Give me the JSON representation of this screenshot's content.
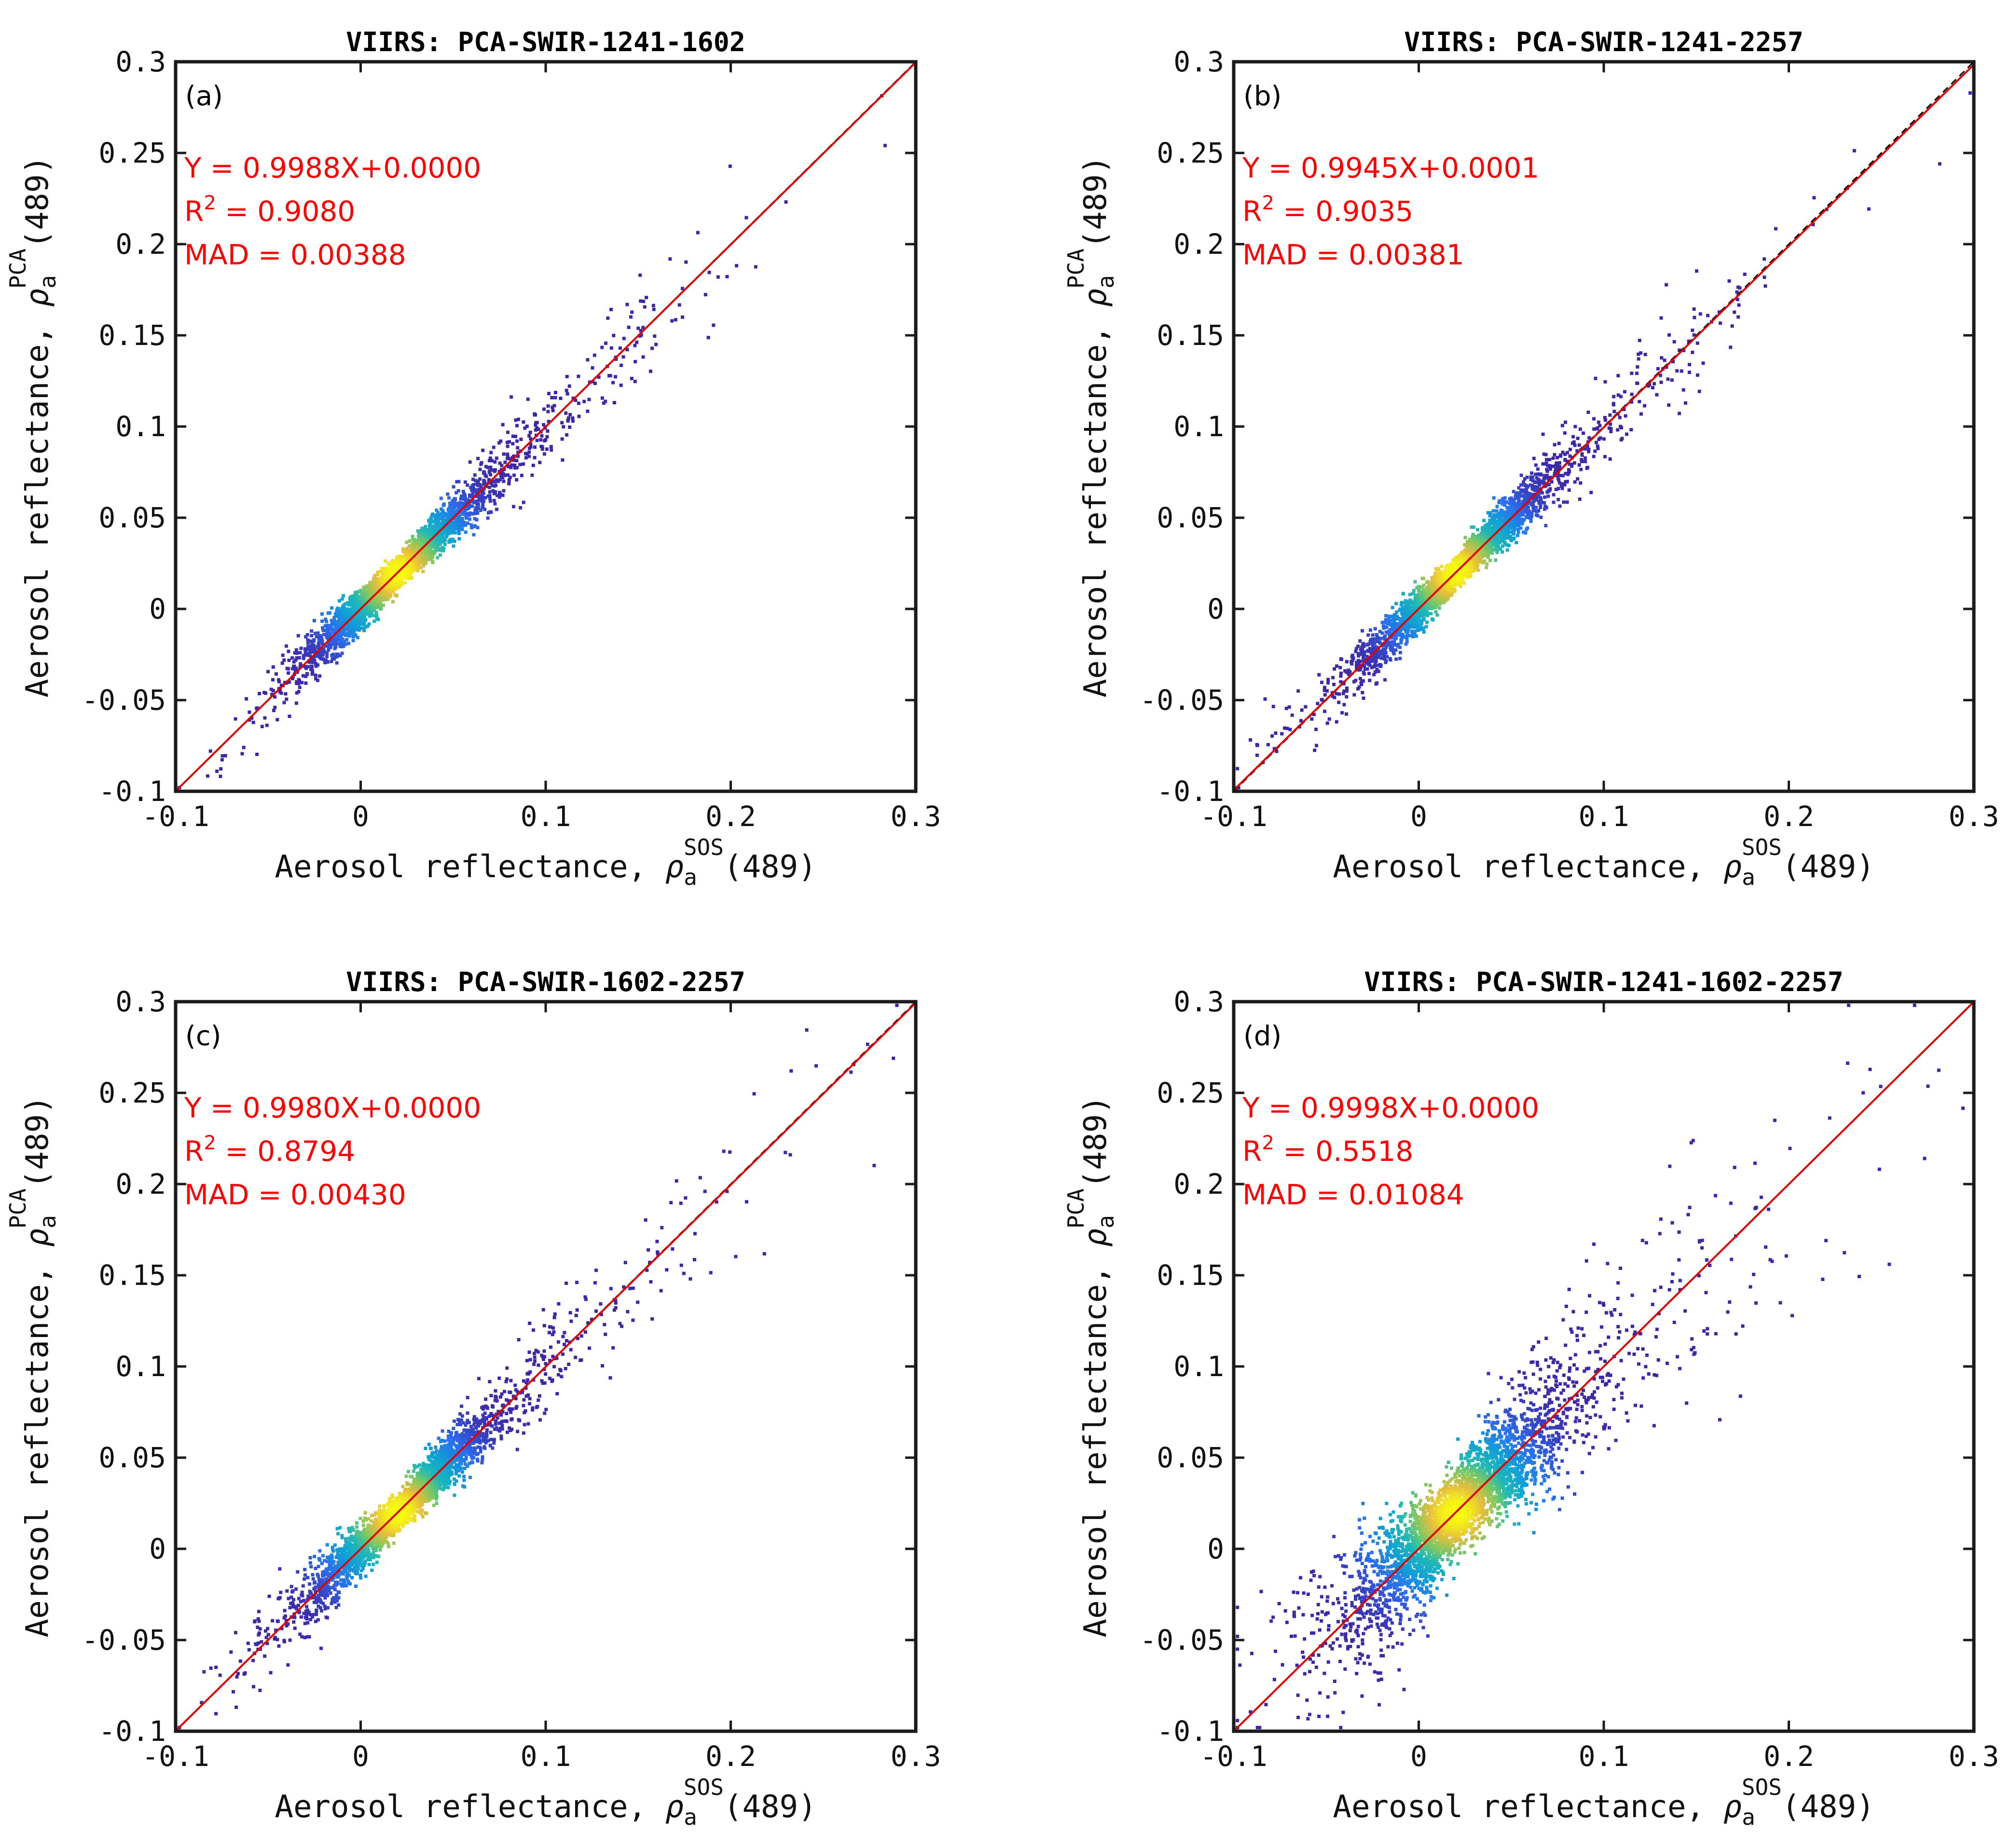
{
  "colors": {
    "fit_line": "#e00000",
    "one_to_one": "#000000",
    "stats_text": "#ff0000",
    "density_low": "#3e26a8",
    "density_mid": "#1fb8b6",
    "density_high": "#f9fb0e"
  },
  "chart_data": [
    {
      "type": "scatter",
      "panel": "(a)",
      "title": "VIIRS: PCA-SWIR-1241-1602",
      "xlabel": {
        "main": "Aerosol reflectance, ",
        "symbol": "ρ",
        "sub": "a",
        "sup": "SOS",
        "tail": "(489)"
      },
      "ylabel": {
        "main": "Aerosol reflectance, ",
        "symbol": "ρ",
        "sub": "a",
        "sup": "PCA",
        "tail": "(489)"
      },
      "xlim": [
        -0.1,
        0.3
      ],
      "ylim": [
        -0.1,
        0.3
      ],
      "xticks": [
        "-0.1",
        "0",
        "0.1",
        "0.2",
        "0.3"
      ],
      "yticks": [
        "-0.1",
        "-0.05",
        "0",
        "0.05",
        "0.1",
        "0.15",
        "0.2",
        "0.25",
        "0.3"
      ],
      "fit": {
        "slope": 0.9988,
        "intercept": 0.0
      },
      "stats": {
        "equation": "Y = 0.9988X+0.0000",
        "r2_prefix": "R",
        "r2_sup": "2",
        "r2_value": " = 0.9080",
        "mad": "MAD = 0.00388"
      },
      "scatter_model": {
        "n": 3200,
        "center": [
          0.02,
          0.02
        ],
        "spread": 0.025,
        "noise": 0.012,
        "seed": 11
      }
    },
    {
      "type": "scatter",
      "panel": "(b)",
      "title": "VIIRS: PCA-SWIR-1241-2257",
      "xlabel": {
        "main": "Aerosol reflectance, ",
        "symbol": "ρ",
        "sub": "a",
        "sup": "SOS",
        "tail": "(489)"
      },
      "ylabel": {
        "main": "Aerosol reflectance, ",
        "symbol": "ρ",
        "sub": "a",
        "sup": "PCA",
        "tail": "(489)"
      },
      "xlim": [
        -0.1,
        0.3
      ],
      "ylim": [
        -0.1,
        0.3
      ],
      "xticks": [
        "-0.1",
        "0",
        "0.1",
        "0.2",
        "0.3"
      ],
      "yticks": [
        "-0.1",
        "-0.05",
        "0",
        "0.05",
        "0.1",
        "0.15",
        "0.2",
        "0.25",
        "0.3"
      ],
      "fit": {
        "slope": 0.9945,
        "intercept": 0.0001
      },
      "stats": {
        "equation": "Y = 0.9945X+0.0001",
        "r2_prefix": "R",
        "r2_sup": "2",
        "r2_value": " = 0.9035",
        "mad": "MAD = 0.00381"
      },
      "scatter_model": {
        "n": 3200,
        "center": [
          0.02,
          0.02
        ],
        "spread": 0.025,
        "noise": 0.012,
        "seed": 23
      }
    },
    {
      "type": "scatter",
      "panel": "(c)",
      "title": "VIIRS: PCA-SWIR-1602-2257",
      "xlabel": {
        "main": "Aerosol reflectance, ",
        "symbol": "ρ",
        "sub": "a",
        "sup": "SOS",
        "tail": "(489)"
      },
      "ylabel": {
        "main": "Aerosol reflectance, ",
        "symbol": "ρ",
        "sub": "a",
        "sup": "PCA",
        "tail": "(489)"
      },
      "xlim": [
        -0.1,
        0.3
      ],
      "ylim": [
        -0.1,
        0.3
      ],
      "xticks": [
        "-0.1",
        "0",
        "0.1",
        "0.2",
        "0.3"
      ],
      "yticks": [
        "-0.1",
        "-0.05",
        "0",
        "0.05",
        "0.1",
        "0.15",
        "0.2",
        "0.25",
        "0.3"
      ],
      "fit": {
        "slope": 0.998,
        "intercept": 0.0
      },
      "stats": {
        "equation": "Y = 0.9980X+0.0000",
        "r2_prefix": "R",
        "r2_sup": "2",
        "r2_value": " = 0.8794",
        "mad": "MAD = 0.00430"
      },
      "scatter_model": {
        "n": 3200,
        "center": [
          0.02,
          0.02
        ],
        "spread": 0.026,
        "noise": 0.014,
        "seed": 37
      }
    },
    {
      "type": "scatter",
      "panel": "(d)",
      "title": "VIIRS: PCA-SWIR-1241-1602-2257",
      "xlabel": {
        "main": "Aerosol reflectance, ",
        "symbol": "ρ",
        "sub": "a",
        "sup": "SOS",
        "tail": "(489)"
      },
      "ylabel": {
        "main": "Aerosol reflectance, ",
        "symbol": "ρ",
        "sub": "a",
        "sup": "PCA",
        "tail": "(489)"
      },
      "xlim": [
        -0.1,
        0.3
      ],
      "ylim": [
        -0.1,
        0.3
      ],
      "xticks": [
        "-0.1",
        "0",
        "0.1",
        "0.2",
        "0.3"
      ],
      "yticks": [
        "-0.1",
        "-0.05",
        "0",
        "0.05",
        "0.1",
        "0.15",
        "0.2",
        "0.25",
        "0.3"
      ],
      "fit": {
        "slope": 0.9998,
        "intercept": 0.0
      },
      "stats": {
        "equation": "Y = 0.9998X+0.0000",
        "r2_prefix": "R",
        "r2_sup": "2",
        "r2_value": " = 0.5518",
        "mad": "MAD = 0.01084"
      },
      "scatter_model": {
        "n": 3400,
        "center": [
          0.02,
          0.02
        ],
        "spread": 0.028,
        "noise": 0.03,
        "seed": 53
      }
    }
  ]
}
